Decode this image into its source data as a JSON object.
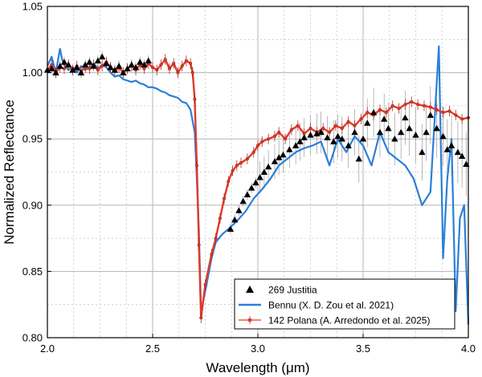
{
  "chart_data": {
    "type": "line",
    "title": "",
    "xlabel": "Wavelength (μm)",
    "ylabel": "Normalized Reflectance",
    "xlim": [
      2.0,
      4.0
    ],
    "ylim": [
      0.8,
      1.05
    ],
    "x_ticks": [
      "2.0",
      "2.5",
      "3.0",
      "3.5",
      "4.0"
    ],
    "y_ticks": [
      "0.80",
      "0.85",
      "0.90",
      "0.95",
      "1.00",
      "1.05"
    ],
    "grid": "dotted minor + solid major",
    "legend_position": "bottom-right",
    "series": [
      {
        "name": "269 Justitia",
        "style": "triangles",
        "color": "#000000",
        "x": [
          2.0,
          2.02,
          2.04,
          2.06,
          2.08,
          2.1,
          2.12,
          2.14,
          2.16,
          2.18,
          2.2,
          2.22,
          2.24,
          2.26,
          2.28,
          2.3,
          2.32,
          2.34,
          2.36,
          2.38,
          2.4,
          2.42,
          2.44,
          2.46,
          2.48,
          2.87,
          2.89,
          2.91,
          2.93,
          2.95,
          2.97,
          2.99,
          3.01,
          3.03,
          3.05,
          3.08,
          3.1,
          3.12,
          3.15,
          3.18,
          3.2,
          3.22,
          3.25,
          3.28,
          3.3,
          3.33,
          3.36,
          3.38,
          3.4,
          3.43,
          3.46,
          3.48,
          3.5,
          3.52,
          3.55,
          3.58,
          3.6,
          3.62,
          3.65,
          3.68,
          3.7,
          3.72,
          3.75,
          3.78,
          3.8,
          3.82,
          3.85,
          3.88,
          3.9,
          3.92,
          3.95,
          3.97,
          3.99
        ],
        "y": [
          1.002,
          1.003,
          1.0,
          1.005,
          1.008,
          1.006,
          1.002,
          1.004,
          1.0,
          1.006,
          1.008,
          1.005,
          1.009,
          1.012,
          1.007,
          1.004,
          1.002,
          1.005,
          1.0,
          1.003,
          1.006,
          1.004,
          1.008,
          1.006,
          1.009,
          0.882,
          0.889,
          0.896,
          0.903,
          0.908,
          0.913,
          0.917,
          0.921,
          0.925,
          0.929,
          0.933,
          0.936,
          0.938,
          0.942,
          0.945,
          0.948,
          0.951,
          0.953,
          0.954,
          0.955,
          0.951,
          0.948,
          0.952,
          0.95,
          0.945,
          0.955,
          0.935,
          0.95,
          0.962,
          0.97,
          0.955,
          0.965,
          0.958,
          0.95,
          0.955,
          0.966,
          0.958,
          0.953,
          0.94,
          0.955,
          0.968,
          0.958,
          0.952,
          0.942,
          0.945,
          0.94,
          0.937,
          0.931
        ]
      },
      {
        "name": "Bennu (X. D. Zou et al. 2021)",
        "style": "line",
        "color": "#2b7fd9",
        "x": [
          2.0,
          2.02,
          2.04,
          2.06,
          2.07,
          2.08,
          2.1,
          2.12,
          2.14,
          2.16,
          2.18,
          2.2,
          2.22,
          2.24,
          2.26,
          2.28,
          2.3,
          2.32,
          2.34,
          2.36,
          2.38,
          2.4,
          2.42,
          2.44,
          2.46,
          2.48,
          2.5,
          2.52,
          2.54,
          2.56,
          2.58,
          2.6,
          2.62,
          2.64,
          2.66,
          2.68,
          2.7,
          2.71,
          2.72,
          2.73,
          2.75,
          2.78,
          2.8,
          2.83,
          2.86,
          2.9,
          2.94,
          2.98,
          3.02,
          3.06,
          3.1,
          3.14,
          3.18,
          3.22,
          3.26,
          3.3,
          3.34,
          3.38,
          3.42,
          3.46,
          3.5,
          3.54,
          3.58,
          3.62,
          3.66,
          3.7,
          3.74,
          3.78,
          3.82,
          3.86,
          3.88,
          3.9,
          3.92,
          3.94,
          3.96,
          3.98,
          4.0
        ],
        "y": [
          1.005,
          1.012,
          1.0,
          1.018,
          1.01,
          1.006,
          1.002,
          1.004,
          1.0,
          1.005,
          1.002,
          1.004,
          1.007,
          1.003,
          1.006,
          1.004,
          1.0,
          0.997,
          0.998,
          0.995,
          0.994,
          0.993,
          0.994,
          0.992,
          0.991,
          0.989,
          0.989,
          0.988,
          0.986,
          0.985,
          0.983,
          0.982,
          0.981,
          0.978,
          0.977,
          0.972,
          0.955,
          0.92,
          0.88,
          0.82,
          0.835,
          0.86,
          0.872,
          0.878,
          0.882,
          0.888,
          0.895,
          0.905,
          0.912,
          0.92,
          0.93,
          0.935,
          0.94,
          0.943,
          0.945,
          0.948,
          0.93,
          0.95,
          0.94,
          0.952,
          0.945,
          0.93,
          0.955,
          0.94,
          0.935,
          0.93,
          0.92,
          0.9,
          0.91,
          1.02,
          0.86,
          0.92,
          0.95,
          0.82,
          0.89,
          0.9,
          0.81
        ]
      },
      {
        "name": "142 Polana (A. Arredondo et al. 2025)",
        "style": "line+markers",
        "color": "#e03a2a",
        "x": [
          2.0,
          2.02,
          2.04,
          2.06,
          2.08,
          2.1,
          2.12,
          2.14,
          2.16,
          2.18,
          2.2,
          2.22,
          2.24,
          2.26,
          2.28,
          2.3,
          2.32,
          2.34,
          2.36,
          2.38,
          2.4,
          2.42,
          2.44,
          2.46,
          2.48,
          2.5,
          2.52,
          2.54,
          2.56,
          2.58,
          2.6,
          2.62,
          2.64,
          2.66,
          2.68,
          2.69,
          2.7,
          2.71,
          2.72,
          2.73,
          2.75,
          2.78,
          2.8,
          2.82,
          2.84,
          2.86,
          2.88,
          2.9,
          2.92,
          2.95,
          2.98,
          3.0,
          3.02,
          3.05,
          3.08,
          3.1,
          3.13,
          3.16,
          3.19,
          3.22,
          3.25,
          3.28,
          3.31,
          3.34,
          3.37,
          3.4,
          3.43,
          3.46,
          3.49,
          3.52,
          3.55,
          3.58,
          3.61,
          3.64,
          3.67,
          3.7,
          3.73,
          3.76,
          3.79,
          3.82,
          3.85,
          3.88,
          3.91,
          3.94,
          3.97,
          4.0
        ],
        "y": [
          1.002,
          1.006,
          1.0,
          1.004,
          1.003,
          1.006,
          1.002,
          1.005,
          1.001,
          1.004,
          1.003,
          1.006,
          1.002,
          1.005,
          1.008,
          1.004,
          1.001,
          1.004,
          1.0,
          1.003,
          1.005,
          1.002,
          1.006,
          1.003,
          1.007,
          1.004,
          1.002,
          1.006,
          1.01,
          1.003,
          1.007,
          1.0,
          1.005,
          1.009,
          1.007,
          1.0,
          0.98,
          0.93,
          0.87,
          0.815,
          0.84,
          0.863,
          0.875,
          0.89,
          0.905,
          0.918,
          0.926,
          0.93,
          0.932,
          0.935,
          0.94,
          0.945,
          0.948,
          0.95,
          0.952,
          0.955,
          0.95,
          0.957,
          0.96,
          0.954,
          0.958,
          0.955,
          0.958,
          0.955,
          0.96,
          0.958,
          0.963,
          0.96,
          0.965,
          0.97,
          0.968,
          0.972,
          0.97,
          0.975,
          0.973,
          0.976,
          0.978,
          0.976,
          0.975,
          0.974,
          0.972,
          0.97,
          0.971,
          0.968,
          0.965,
          0.966
        ]
      }
    ]
  }
}
